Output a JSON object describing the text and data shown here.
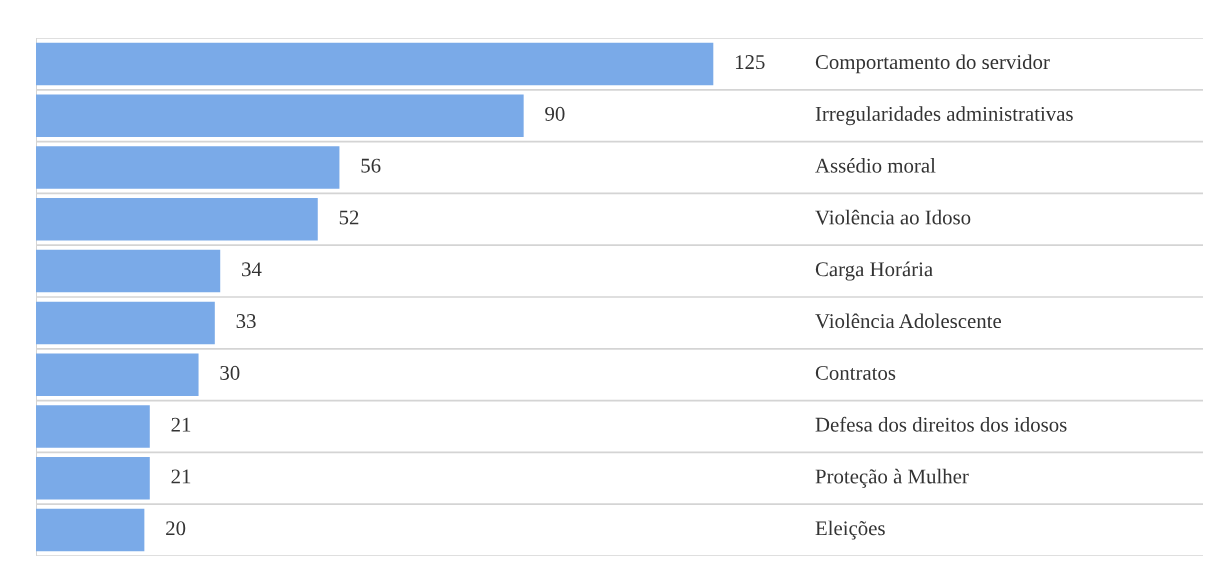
{
  "chart_data": {
    "type": "bar",
    "orientation": "horizontal",
    "categories": [
      "Comportamento do servidor",
      "Irregularidades administrativas",
      "Assédio moral",
      "Violência ao Idoso",
      "Carga Horária",
      "Violência Adolescente",
      "Contratos",
      "Defesa dos direitos dos idosos",
      "Proteção à Mulher",
      "Eleições"
    ],
    "values": [
      125,
      90,
      56,
      52,
      34,
      33,
      30,
      21,
      21,
      20
    ],
    "color": "#7aaae8",
    "data_labels": true,
    "grid": "y",
    "legend": false
  }
}
